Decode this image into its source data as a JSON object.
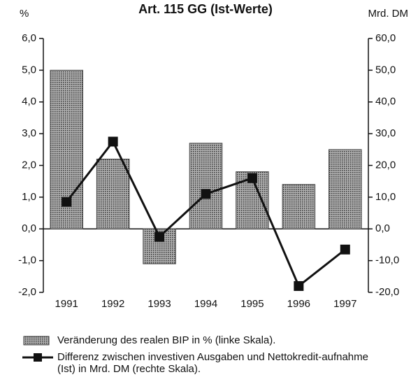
{
  "chart_data": {
    "type": "bar-line",
    "title": "Art. 115 GG (Ist-Werte)",
    "y_label": "%",
    "y2_label": "Mrd. DM",
    "categories": [
      "1991",
      "1992",
      "1993",
      "1994",
      "1995",
      "1996",
      "1997"
    ],
    "series": [
      {
        "name": "Veränderung des realen BIP in % (linke Skala).",
        "type": "bar",
        "color": "#8a8a8a",
        "axis": "y",
        "values": [
          5.0,
          2.2,
          -1.1,
          2.7,
          1.8,
          1.4,
          2.5
        ]
      },
      {
        "name": "Differenz zwischen investiven Ausgaben und Nettokredit-aufnahme (Ist) in Mrd. DM (rechte Skala).",
        "type": "line",
        "color": "#111111",
        "axis": "y2",
        "values": [
          8.5,
          27.5,
          -2.5,
          11.0,
          16.0,
          -18.0,
          -6.5
        ]
      }
    ],
    "ylim": [
      -2,
      6
    ],
    "yticks": [
      {
        "value": -2,
        "label": "-2,0"
      },
      {
        "value": -1,
        "label": "-1,0"
      },
      {
        "value": 0,
        "label": "0,0"
      },
      {
        "value": 1,
        "label": "1,0"
      },
      {
        "value": 2,
        "label": "2,0"
      },
      {
        "value": 3,
        "label": "3,0"
      },
      {
        "value": 4,
        "label": "4,0"
      },
      {
        "value": 5,
        "label": "5,0"
      },
      {
        "value": 6,
        "label": "6,0"
      }
    ],
    "y2lim": [
      -20,
      60
    ],
    "y2ticks": [
      {
        "value": -20,
        "label": "-20,0"
      },
      {
        "value": -10,
        "label": "-10,0"
      },
      {
        "value": 0,
        "label": "0,0"
      },
      {
        "value": 10,
        "label": "10,0"
      },
      {
        "value": 20,
        "label": "20,0"
      },
      {
        "value": 30,
        "label": "30,0"
      },
      {
        "value": 40,
        "label": "40,0"
      },
      {
        "value": 50,
        "label": "50,0"
      },
      {
        "value": 60,
        "label": "60,0"
      }
    ]
  }
}
